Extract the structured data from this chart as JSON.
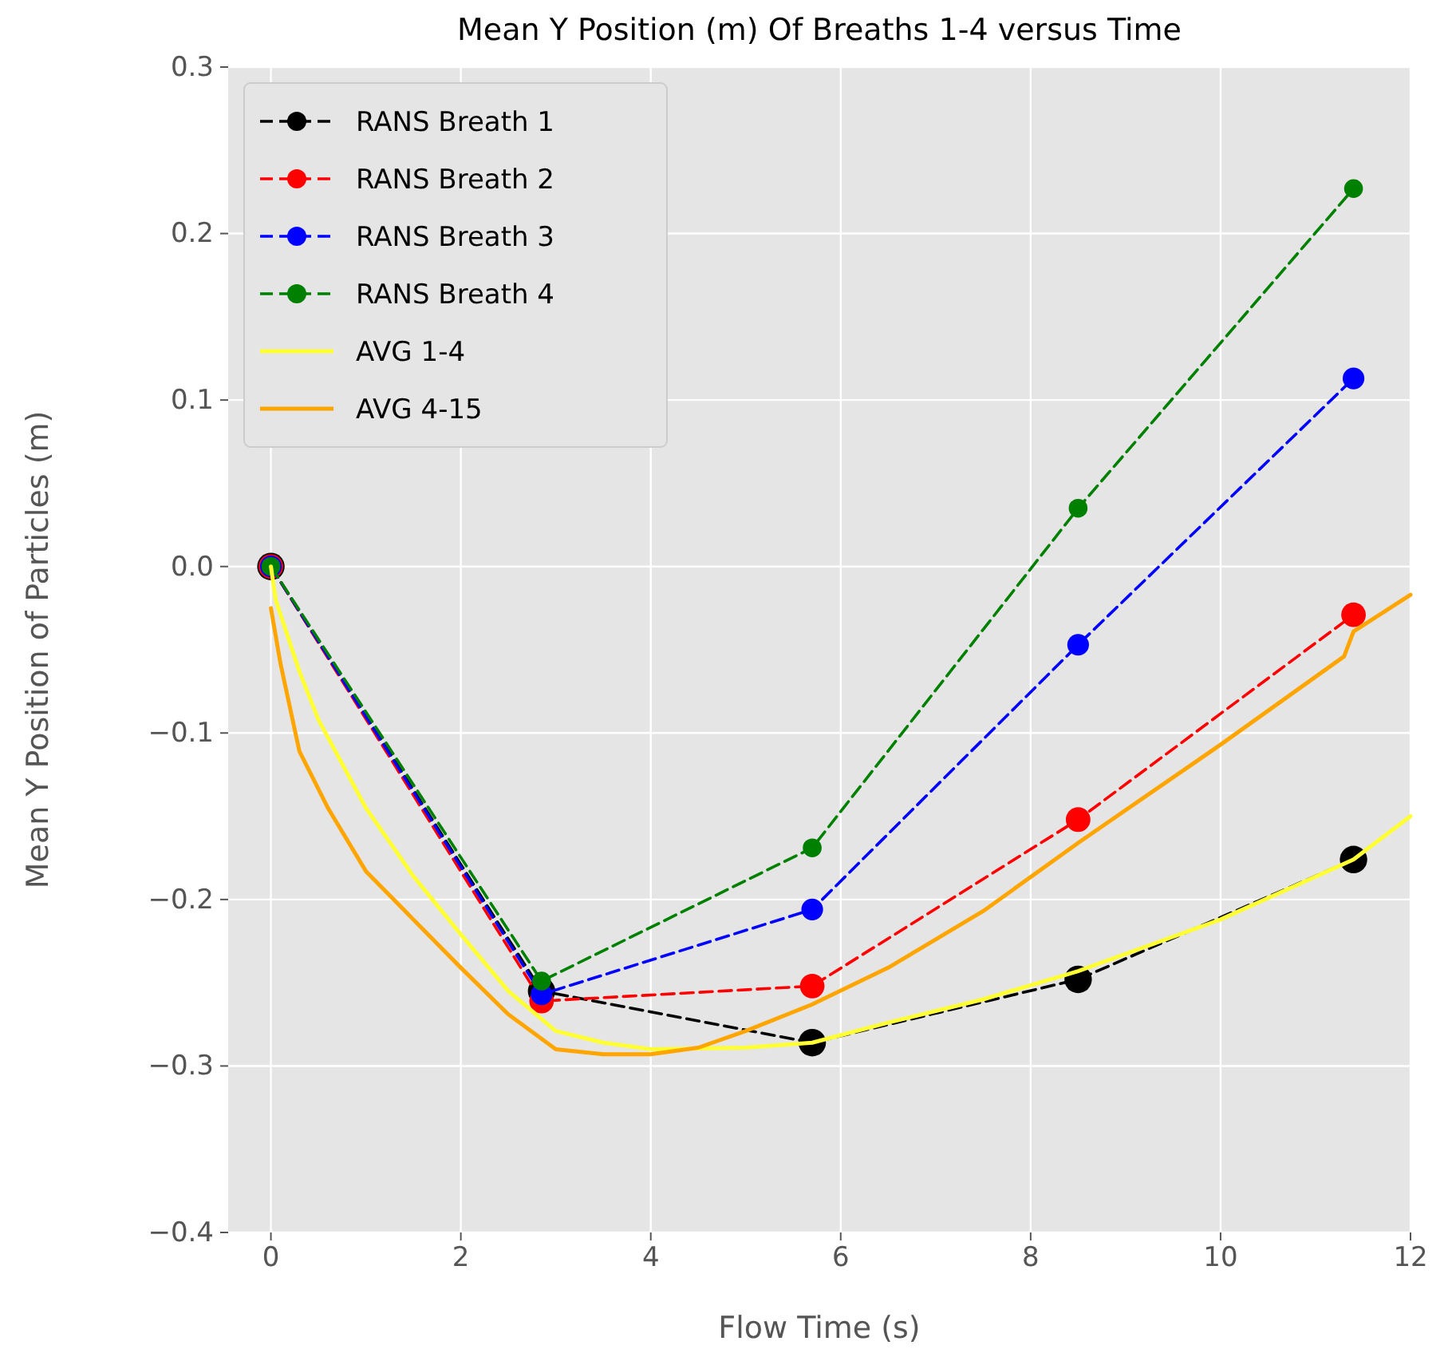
{
  "chart_data": {
    "type": "line",
    "title": "Mean Y Position (m) Of Breaths 1-4 versus Time",
    "xlabel": "Flow Time (s)",
    "ylabel": "Mean Y Position of Particles (m)",
    "xlim": [
      -0.45,
      12
    ],
    "xticks": [
      0,
      2,
      4,
      6,
      8,
      10,
      12
    ],
    "ylim": [
      -0.4,
      0.3
    ],
    "yticks": [
      {
        "value": -0.4,
        "label": "−0.4"
      },
      {
        "value": -0.3,
        "label": "−0.3"
      },
      {
        "value": -0.2,
        "label": "−0.2"
      },
      {
        "value": -0.1,
        "label": "−0.1"
      },
      {
        "value": 0,
        "label": "0.0"
      },
      {
        "value": 0.1,
        "label": "0.1"
      },
      {
        "value": 0.2,
        "label": "0.2"
      },
      {
        "value": 0.3,
        "label": "0.3"
      }
    ],
    "grid": true,
    "legend": "top left",
    "series": [
      {
        "name": "RANS Breath 1",
        "color": "#000000",
        "marker": "circle",
        "line_style": "dashed",
        "x": [
          0,
          2.85,
          5.7,
          8.5,
          11.4
        ],
        "values": [
          0,
          -0.255,
          -0.286,
          -0.248,
          -0.176
        ]
      },
      {
        "name": "RANS Breath 2",
        "color": "#ff0000",
        "marker": "circle",
        "line_style": "dashed",
        "x": [
          0,
          2.85,
          5.7,
          8.5,
          11.4
        ],
        "values": [
          0,
          -0.261,
          -0.252,
          -0.152,
          -0.029
        ]
      },
      {
        "name": "RANS Breath 3",
        "color": "#0000ff",
        "marker": "circle",
        "line_style": "dashed",
        "x": [
          0,
          2.85,
          5.7,
          8.5,
          11.4
        ],
        "values": [
          0,
          -0.257,
          -0.206,
          -0.047,
          0.113
        ]
      },
      {
        "name": "RANS Breath 4",
        "color": "#008000",
        "marker": "circle",
        "line_style": "dashed",
        "x": [
          0,
          2.85,
          5.7,
          8.5,
          11.4
        ],
        "values": [
          0,
          -0.249,
          -0.169,
          0.035,
          0.227
        ]
      },
      {
        "name": "AVG 1-4",
        "color": "#ffff33",
        "marker": "none",
        "line_style": "solid",
        "x": [
          0,
          0.05,
          0.3,
          0.5,
          1,
          1.5,
          2,
          2.5,
          3,
          3.5,
          4,
          5,
          5.7,
          6.5,
          7.5,
          8.5,
          10,
          11.4,
          12
        ],
        "values": [
          0,
          -0.02,
          -0.063,
          -0.092,
          -0.145,
          -0.186,
          -0.221,
          -0.255,
          -0.279,
          -0.286,
          -0.29,
          -0.289,
          -0.286,
          -0.274,
          -0.26,
          -0.243,
          -0.212,
          -0.176,
          -0.15
        ]
      },
      {
        "name": "AVG 4-15",
        "color": "#ffa500",
        "marker": "none",
        "line_style": "solid",
        "x": [
          0,
          0.1,
          0.3,
          0.6,
          1,
          1.5,
          2,
          2.5,
          3,
          3.5,
          4,
          4.5,
          5,
          5.7,
          6.5,
          7.5,
          8.5,
          10,
          11.3,
          11.4,
          12
        ],
        "values": [
          -0.025,
          -0.058,
          -0.111,
          -0.145,
          -0.183,
          -0.212,
          -0.241,
          -0.269,
          -0.29,
          -0.293,
          -0.293,
          -0.289,
          -0.279,
          -0.263,
          -0.241,
          -0.207,
          -0.166,
          -0.107,
          -0.054,
          -0.039,
          -0.017
        ]
      }
    ]
  }
}
